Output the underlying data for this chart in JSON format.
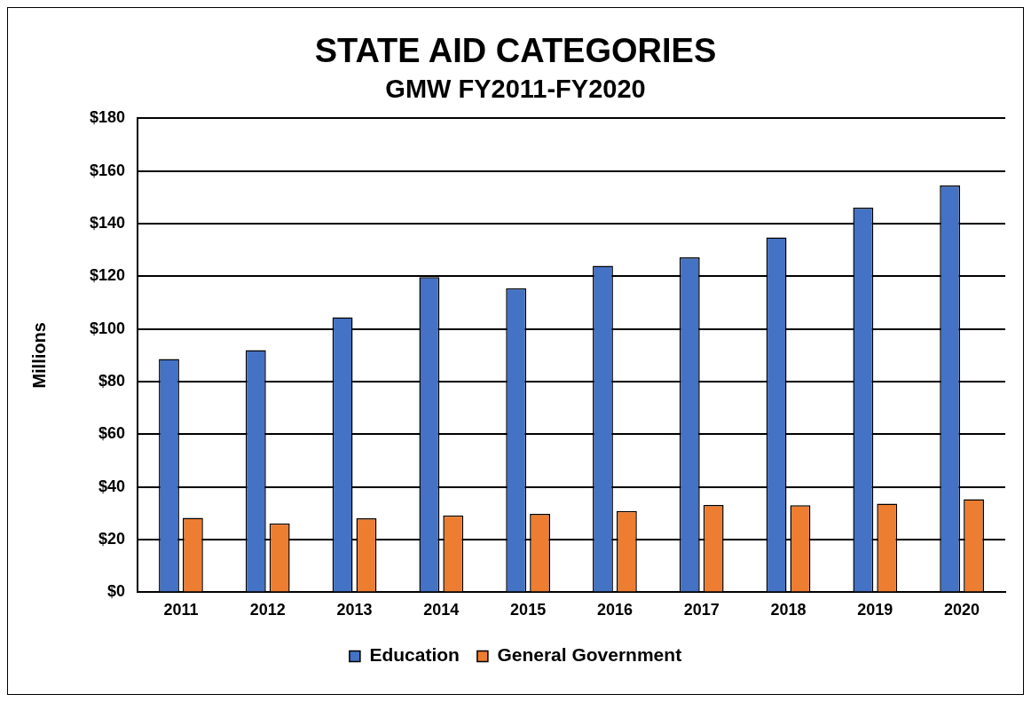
{
  "chart_data": {
    "type": "bar",
    "title": "STATE AID CATEGORIES",
    "subtitle": "GMW FY2011-FY2020",
    "ylabel": "Millions",
    "categories": [
      "2011",
      "2012",
      "2013",
      "2014",
      "2015",
      "2016",
      "2017",
      "2018",
      "2019",
      "2020"
    ],
    "series": [
      {
        "name": "Education",
        "color": "#4472c4",
        "values": [
          88.6,
          92.0,
          104.5,
          119.7,
          115.5,
          124.0,
          127.2,
          134.8,
          146.1,
          154.5
        ]
      },
      {
        "name": "General Government",
        "color": "#ed7d31",
        "values": [
          28.3,
          26.2,
          28.1,
          29.2,
          29.8,
          30.9,
          33.2,
          33.1,
          33.7,
          35.4
        ]
      }
    ],
    "ylim": [
      0,
      180
    ],
    "yticks": [
      {
        "value": 0,
        "label": "$0"
      },
      {
        "value": 20,
        "label": "$20"
      },
      {
        "value": 40,
        "label": "$40"
      },
      {
        "value": 60,
        "label": "$60"
      },
      {
        "value": 80,
        "label": "$80"
      },
      {
        "value": 100,
        "label": "$100"
      },
      {
        "value": 120,
        "label": "$120"
      },
      {
        "value": 140,
        "label": "$140"
      },
      {
        "value": 160,
        "label": "$160"
      },
      {
        "value": 180,
        "label": "$180"
      }
    ],
    "grid": "y",
    "legend": "bottom"
  }
}
